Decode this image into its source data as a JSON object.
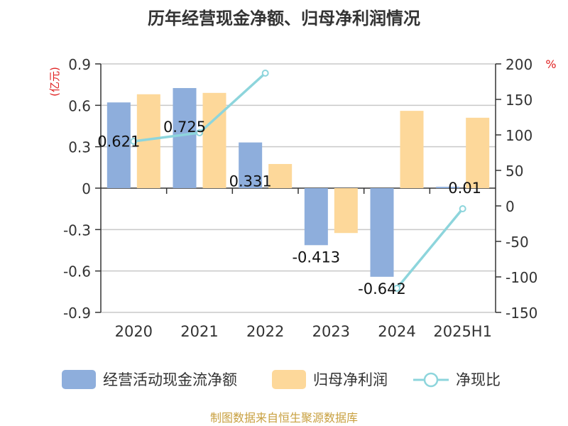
{
  "chart_data": {
    "type": "bar",
    "title": "历年经营现金净额、归母净利润情况",
    "categories": [
      "2020",
      "2021",
      "2022",
      "2023",
      "2024",
      "2025H1"
    ],
    "y_left": {
      "unit_label": "(亿元)",
      "ylim": [
        -0.9,
        0.9
      ],
      "ticks": [
        "0.9",
        "0.6",
        "0.3",
        "0",
        "-0.3",
        "-0.6",
        "-0.9"
      ]
    },
    "y_right": {
      "unit_label": "%",
      "ylim": [
        -150,
        200
      ],
      "ticks": [
        "200",
        "150",
        "100",
        "50",
        "0",
        "-50",
        "-100",
        "-150"
      ]
    },
    "series": [
      {
        "name": "经营活动现金流净额",
        "kind": "bar",
        "color": "#8eaedc",
        "values": [
          0.621,
          0.725,
          0.331,
          -0.413,
          -0.642,
          0.01
        ],
        "labels": [
          "0.621",
          "0.725",
          "0.331",
          "-0.413",
          "-0.642",
          "0.01"
        ]
      },
      {
        "name": "归母净利润",
        "kind": "bar",
        "color": "#fdd89a",
        "values": [
          0.68,
          0.69,
          0.175,
          -0.325,
          0.56,
          0.51
        ]
      },
      {
        "name": "净现比",
        "kind": "line",
        "color": "#8dd5dc",
        "values": [
          91,
          103,
          187,
          null,
          -116,
          -4
        ]
      }
    ],
    "grid": true,
    "legend": "bottom",
    "source": "制图数据来自恒生聚源数据库"
  }
}
